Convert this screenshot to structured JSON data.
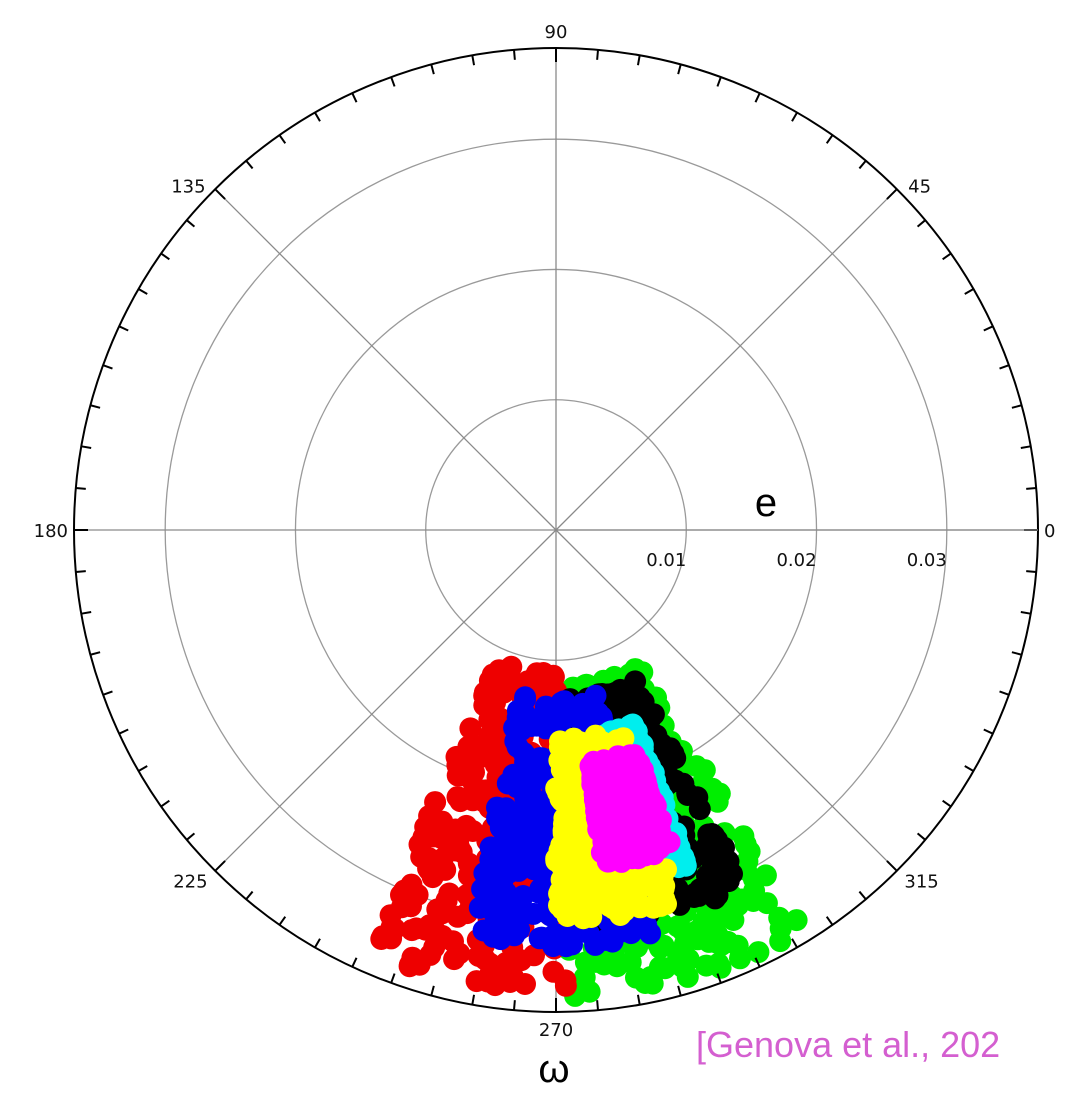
{
  "chart_data": {
    "type": "scatter",
    "projection": "polar",
    "angular_label": "ω",
    "radial_label": "e",
    "angular_ticks": [
      "0",
      "45",
      "90",
      "135",
      "180",
      "225",
      "270",
      "315"
    ],
    "radial_ticks": [
      "0.01",
      "0.02",
      "0.03"
    ],
    "rlim": [
      0,
      0.037
    ],
    "grid": true,
    "series_colors": [
      "#ee0000",
      "#00ee00",
      "#000000",
      "#0000ee",
      "#00eeee",
      "#ffff00",
      "#ff00ff"
    ],
    "regions": [
      {
        "color": "#00ee00",
        "omega_range_deg": [
          271,
          302
        ],
        "e_range": [
          0.012,
          0.036
        ]
      },
      {
        "color": "#ee0000",
        "omega_range_deg": [
          246,
          272
        ],
        "e_range": [
          0.011,
          0.036
        ]
      },
      {
        "color": "#000000",
        "omega_range_deg": [
          272,
          298
        ],
        "e_range": [
          0.013,
          0.031
        ]
      },
      {
        "color": "#0000ee",
        "omega_range_deg": [
          258,
          284
        ],
        "e_range": [
          0.013,
          0.032
        ]
      },
      {
        "color": "#00eeee",
        "omega_range_deg": [
          275,
          292
        ],
        "e_range": [
          0.016,
          0.028
        ]
      },
      {
        "color": "#ffff00",
        "omega_range_deg": [
          270,
          288
        ],
        "e_range": [
          0.016,
          0.03
        ]
      },
      {
        "color": "#ff00ff",
        "omega_range_deg": [
          278,
          290
        ],
        "e_range": [
          0.018,
          0.026
        ]
      }
    ]
  },
  "citation": "[Genova et al., 202"
}
